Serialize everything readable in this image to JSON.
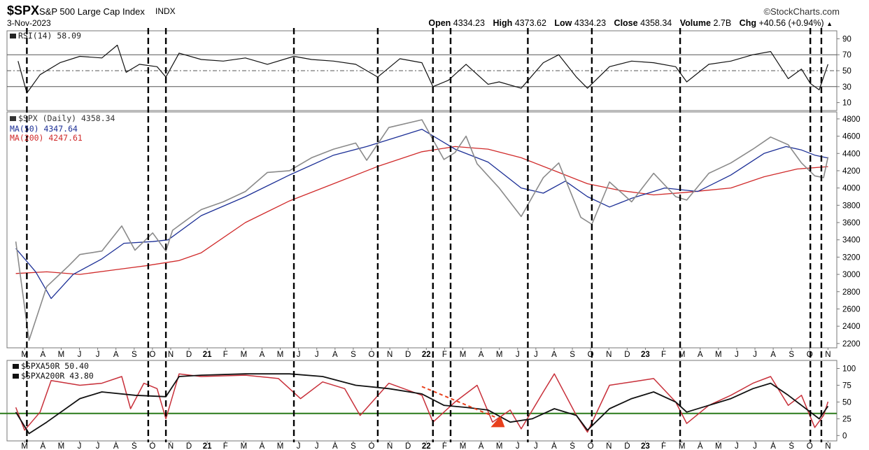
{
  "header": {
    "symbol": "$SPX",
    "name": "S&P 500 Large Cap Index",
    "exchange": "INDX",
    "date": "3-Nov-2023",
    "brand": "©StockCharts.com",
    "open_label": "Open",
    "open": "4334.23",
    "high_label": "High",
    "high": "4373.62",
    "low_label": "Low",
    "low": "4334.23",
    "close_label": "Close",
    "close": "4358.34",
    "volume_label": "Volume",
    "volume": "2.7B",
    "chg_label": "Chg",
    "chg": "+40.56 (+0.94%)",
    "chg_arrow": "▲"
  },
  "colors": {
    "price": "#8a8a8a",
    "ma50": "#1c2f96",
    "ma200": "#d02a2a",
    "rsi": "#111111",
    "breadth_red": "#c8303a",
    "breadth_black": "#111111",
    "green_line": "#2a7a1a",
    "annotation": "#e8401c"
  },
  "chart_data": [
    {
      "type": "line",
      "panel": "RSI",
      "legend": [
        "RSI(14) 58.09"
      ],
      "yticks": [
        90,
        70,
        50,
        30,
        10
      ],
      "ylim": [
        0,
        100
      ],
      "reference_lines": [
        70,
        50,
        30
      ],
      "series": [
        {
          "name": "RSI(14)",
          "last": 58.09,
          "points": [
            [
              2020.17,
              62
            ],
            [
              2020.21,
              22
            ],
            [
              2020.27,
              45
            ],
            [
              2020.36,
              60
            ],
            [
              2020.45,
              68
            ],
            [
              2020.55,
              66
            ],
            [
              2020.62,
              82
            ],
            [
              2020.66,
              48
            ],
            [
              2020.72,
              58
            ],
            [
              2020.8,
              55
            ],
            [
              2020.84,
              42
            ],
            [
              2020.9,
              72
            ],
            [
              2021.0,
              64
            ],
            [
              2021.1,
              62
            ],
            [
              2021.2,
              66
            ],
            [
              2021.3,
              58
            ],
            [
              2021.42,
              68
            ],
            [
              2021.5,
              64
            ],
            [
              2021.6,
              62
            ],
            [
              2021.7,
              58
            ],
            [
              2021.8,
              42
            ],
            [
              2021.9,
              65
            ],
            [
              2022.0,
              60
            ],
            [
              2022.05,
              30
            ],
            [
              2022.12,
              38
            ],
            [
              2022.2,
              58
            ],
            [
              2022.3,
              33
            ],
            [
              2022.35,
              36
            ],
            [
              2022.45,
              28
            ],
            [
              2022.55,
              60
            ],
            [
              2022.62,
              70
            ],
            [
              2022.7,
              42
            ],
            [
              2022.75,
              28
            ],
            [
              2022.85,
              55
            ],
            [
              2022.95,
              62
            ],
            [
              2023.05,
              60
            ],
            [
              2023.15,
              55
            ],
            [
              2023.2,
              36
            ],
            [
              2023.3,
              58
            ],
            [
              2023.4,
              62
            ],
            [
              2023.5,
              70
            ],
            [
              2023.58,
              74
            ],
            [
              2023.66,
              40
            ],
            [
              2023.72,
              52
            ],
            [
              2023.76,
              34
            ],
            [
              2023.8,
              26
            ],
            [
              2023.84,
              58.09
            ]
          ]
        }
      ]
    },
    {
      "type": "line",
      "panel": "Price",
      "legend": [
        "$SPX (Daily) 4358.34",
        "MA(50) 4347.64",
        "MA(200) 4247.61"
      ],
      "yticks": [
        4800,
        4600,
        4400,
        4200,
        4000,
        3800,
        3600,
        3400,
        3200,
        3000,
        2800,
        2600,
        2400,
        2200
      ],
      "ylim": [
        2150,
        4880
      ],
      "x_labels": [
        "M",
        "A",
        "M",
        "J",
        "J",
        "A",
        "S",
        "O",
        "N",
        "D",
        "21",
        "F",
        "M",
        "A",
        "M",
        "J",
        "J",
        "A",
        "S",
        "O",
        "N",
        "D",
        "22",
        "F",
        "M",
        "A",
        "M",
        "J",
        "J",
        "A",
        "S",
        "O",
        "N",
        "D",
        "23",
        "F",
        "M",
        "A",
        "M",
        "J",
        "J",
        "A",
        "S",
        "O",
        "N"
      ],
      "series": [
        {
          "name": "$SPX (Daily)",
          "last": 4358.34,
          "points": [
            [
              2020.16,
              3380
            ],
            [
              2020.22,
              2237
            ],
            [
              2020.3,
              2860
            ],
            [
              2020.4,
              3100
            ],
            [
              2020.45,
              3230
            ],
            [
              2020.55,
              3270
            ],
            [
              2020.64,
              3560
            ],
            [
              2020.7,
              3280
            ],
            [
              2020.78,
              3480
            ],
            [
              2020.84,
              3270
            ],
            [
              2020.87,
              3510
            ],
            [
              2020.95,
              3660
            ],
            [
              2021.0,
              3750
            ],
            [
              2021.1,
              3840
            ],
            [
              2021.2,
              3960
            ],
            [
              2021.3,
              4180
            ],
            [
              2021.4,
              4200
            ],
            [
              2021.5,
              4350
            ],
            [
              2021.6,
              4450
            ],
            [
              2021.7,
              4520
            ],
            [
              2021.75,
              4320
            ],
            [
              2021.85,
              4700
            ],
            [
              2022.0,
              4790
            ],
            [
              2022.1,
              4330
            ],
            [
              2022.15,
              4410
            ],
            [
              2022.2,
              4600
            ],
            [
              2022.25,
              4280
            ],
            [
              2022.35,
              4000
            ],
            [
              2022.45,
              3670
            ],
            [
              2022.55,
              4120
            ],
            [
              2022.62,
              4290
            ],
            [
              2022.72,
              3660
            ],
            [
              2022.77,
              3580
            ],
            [
              2022.85,
              4070
            ],
            [
              2022.95,
              3840
            ],
            [
              2023.05,
              4170
            ],
            [
              2023.15,
              3900
            ],
            [
              2023.2,
              3860
            ],
            [
              2023.3,
              4170
            ],
            [
              2023.4,
              4290
            ],
            [
              2023.5,
              4450
            ],
            [
              2023.58,
              4590
            ],
            [
              2023.66,
              4500
            ],
            [
              2023.72,
              4290
            ],
            [
              2023.78,
              4140
            ],
            [
              2023.82,
              4120
            ],
            [
              2023.84,
              4358.34
            ]
          ]
        },
        {
          "name": "MA(50)",
          "last": 4347.64,
          "points": [
            [
              2020.16,
              3300
            ],
            [
              2020.25,
              3030
            ],
            [
              2020.32,
              2720
            ],
            [
              2020.42,
              3000
            ],
            [
              2020.55,
              3180
            ],
            [
              2020.65,
              3360
            ],
            [
              2020.78,
              3380
            ],
            [
              2020.85,
              3400
            ],
            [
              2021.0,
              3680
            ],
            [
              2021.2,
              3900
            ],
            [
              2021.4,
              4150
            ],
            [
              2021.6,
              4380
            ],
            [
              2021.75,
              4480
            ],
            [
              2021.9,
              4600
            ],
            [
              2022.0,
              4680
            ],
            [
              2022.15,
              4450
            ],
            [
              2022.3,
              4300
            ],
            [
              2022.45,
              4000
            ],
            [
              2022.55,
              3940
            ],
            [
              2022.65,
              4080
            ],
            [
              2022.75,
              3900
            ],
            [
              2022.85,
              3780
            ],
            [
              2022.95,
              3880
            ],
            [
              2023.1,
              4000
            ],
            [
              2023.25,
              3960
            ],
            [
              2023.4,
              4150
            ],
            [
              2023.55,
              4400
            ],
            [
              2023.65,
              4480
            ],
            [
              2023.72,
              4440
            ],
            [
              2023.78,
              4380
            ],
            [
              2023.84,
              4347.64
            ]
          ]
        },
        {
          "name": "MA(200)",
          "last": 4247.61,
          "points": [
            [
              2020.16,
              3010
            ],
            [
              2020.3,
              3030
            ],
            [
              2020.45,
              3000
            ],
            [
              2020.6,
              3050
            ],
            [
              2020.75,
              3100
            ],
            [
              2020.9,
              3160
            ],
            [
              2021.0,
              3250
            ],
            [
              2021.2,
              3600
            ],
            [
              2021.4,
              3850
            ],
            [
              2021.6,
              4050
            ],
            [
              2021.8,
              4250
            ],
            [
              2022.0,
              4420
            ],
            [
              2022.15,
              4480
            ],
            [
              2022.3,
              4450
            ],
            [
              2022.45,
              4350
            ],
            [
              2022.6,
              4200
            ],
            [
              2022.75,
              4050
            ],
            [
              2022.9,
              3970
            ],
            [
              2023.05,
              3920
            ],
            [
              2023.2,
              3950
            ],
            [
              2023.4,
              4000
            ],
            [
              2023.55,
              4130
            ],
            [
              2023.7,
              4220
            ],
            [
              2023.84,
              4247.61
            ]
          ]
        }
      ]
    },
    {
      "type": "line",
      "panel": "Breadth",
      "legend": [
        "$SPXA50R 50.40",
        "$SPXA200R 43.80"
      ],
      "yticks": [
        100,
        75,
        50,
        25,
        0
      ],
      "ylim": [
        0,
        100
      ],
      "reference_lines": [
        33
      ],
      "annotation": {
        "type": "arrow",
        "from": [
          2022.0,
          73
        ],
        "to": [
          2022.35,
          25
        ]
      },
      "series": [
        {
          "name": "$SPXA50R",
          "last": 50.4,
          "points": [
            [
              2020.16,
              42
            ],
            [
              2020.2,
              8
            ],
            [
              2020.27,
              35
            ],
            [
              2020.32,
              82
            ],
            [
              2020.45,
              75
            ],
            [
              2020.55,
              78
            ],
            [
              2020.64,
              88
            ],
            [
              2020.68,
              40
            ],
            [
              2020.74,
              78
            ],
            [
              2020.8,
              70
            ],
            [
              2020.84,
              25
            ],
            [
              2020.9,
              92
            ],
            [
              2021.0,
              88
            ],
            [
              2021.2,
              90
            ],
            [
              2021.35,
              85
            ],
            [
              2021.45,
              55
            ],
            [
              2021.55,
              80
            ],
            [
              2021.65,
              70
            ],
            [
              2021.72,
              30
            ],
            [
              2021.85,
              78
            ],
            [
              2022.0,
              60
            ],
            [
              2022.05,
              20
            ],
            [
              2022.15,
              50
            ],
            [
              2022.25,
              75
            ],
            [
              2022.32,
              20
            ],
            [
              2022.4,
              38
            ],
            [
              2022.45,
              10
            ],
            [
              2022.55,
              65
            ],
            [
              2022.6,
              92
            ],
            [
              2022.7,
              30
            ],
            [
              2022.75,
              5
            ],
            [
              2022.85,
              75
            ],
            [
              2022.95,
              80
            ],
            [
              2023.05,
              85
            ],
            [
              2023.15,
              50
            ],
            [
              2023.2,
              18
            ],
            [
              2023.3,
              45
            ],
            [
              2023.4,
              60
            ],
            [
              2023.5,
              78
            ],
            [
              2023.58,
              88
            ],
            [
              2023.66,
              45
            ],
            [
              2023.72,
              60
            ],
            [
              2023.78,
              12
            ],
            [
              2023.82,
              30
            ],
            [
              2023.84,
              50.4
            ]
          ]
        },
        {
          "name": "$SPXA200R",
          "last": 43.8,
          "points": [
            [
              2020.16,
              35
            ],
            [
              2020.22,
              3
            ],
            [
              2020.3,
              20
            ],
            [
              2020.45,
              55
            ],
            [
              2020.55,
              65
            ],
            [
              2020.7,
              60
            ],
            [
              2020.84,
              58
            ],
            [
              2020.9,
              88
            ],
            [
              2021.0,
              90
            ],
            [
              2021.2,
              92
            ],
            [
              2021.4,
              92
            ],
            [
              2021.55,
              88
            ],
            [
              2021.7,
              75
            ],
            [
              2021.85,
              70
            ],
            [
              2022.0,
              62
            ],
            [
              2022.1,
              45
            ],
            [
              2022.2,
              42
            ],
            [
              2022.3,
              38
            ],
            [
              2022.4,
              20
            ],
            [
              2022.5,
              25
            ],
            [
              2022.6,
              40
            ],
            [
              2022.7,
              30
            ],
            [
              2022.75,
              8
            ],
            [
              2022.85,
              40
            ],
            [
              2022.95,
              55
            ],
            [
              2023.05,
              65
            ],
            [
              2023.15,
              50
            ],
            [
              2023.2,
              35
            ],
            [
              2023.3,
              45
            ],
            [
              2023.4,
              55
            ],
            [
              2023.5,
              70
            ],
            [
              2023.58,
              78
            ],
            [
              2023.66,
              60
            ],
            [
              2023.72,
              45
            ],
            [
              2023.8,
              25
            ],
            [
              2023.84,
              43.8
            ]
          ]
        }
      ]
    }
  ],
  "events": [
    2020.21,
    2020.76,
    2020.84,
    2021.42,
    2021.8,
    2022.05,
    2022.13,
    2022.48,
    2022.77,
    2023.17,
    2023.76,
    2023.81
  ]
}
